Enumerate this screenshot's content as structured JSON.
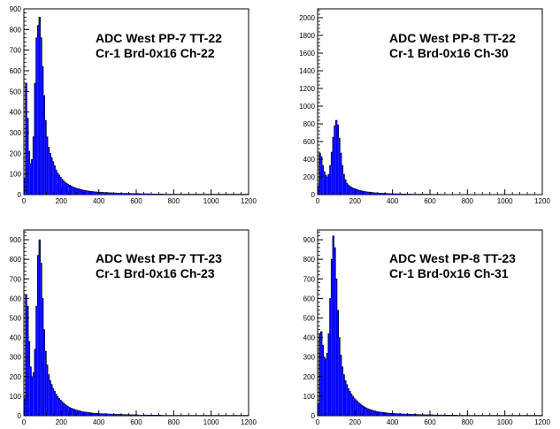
{
  "chart_data": [
    {
      "type": "bar",
      "title_lines": [
        "ADC West PP-7 TT-22",
        "Cr-1 Brd-0x16 Ch-22"
      ],
      "xlim": [
        0,
        1200
      ],
      "ylim": [
        0,
        900
      ],
      "x_ticks": [
        0,
        200,
        400,
        600,
        800,
        1000,
        1200
      ],
      "y_ticks": [
        0,
        100,
        200,
        300,
        400,
        500,
        600,
        700,
        800,
        900
      ],
      "bin_width": 8,
      "bar_color": "#0000ff",
      "outline_color": "#000000",
      "counts": [
        80,
        540,
        370,
        210,
        150,
        170,
        280,
        540,
        760,
        820,
        860,
        760,
        620,
        480,
        360,
        280,
        230,
        200,
        180,
        160,
        140,
        120,
        105,
        95,
        85,
        75,
        68,
        60,
        55,
        50,
        46,
        42,
        38,
        35,
        32,
        30,
        28,
        26,
        24,
        22,
        20,
        19,
        18,
        17,
        16,
        15,
        14,
        13,
        13,
        12,
        12,
        11,
        11,
        10,
        10,
        10,
        9,
        9,
        9,
        8,
        8,
        8,
        7,
        7,
        7,
        7,
        6,
        6,
        6,
        6,
        6,
        5,
        5,
        5,
        5,
        5,
        5,
        4,
        4,
        4,
        4,
        4,
        4,
        4,
        3,
        3,
        3,
        3,
        3,
        3,
        3,
        3,
        3,
        2,
        2,
        2,
        2,
        2,
        2,
        2,
        2,
        2,
        2,
        2,
        2,
        2,
        2,
        2,
        2,
        2,
        2,
        2,
        2,
        2,
        2,
        2,
        2,
        2,
        2,
        2,
        2,
        2,
        2,
        2,
        2,
        2,
        2,
        2,
        2,
        2,
        2,
        2,
        2,
        2,
        2,
        2,
        2,
        2,
        2,
        2,
        2,
        2,
        2,
        2,
        2,
        2,
        2,
        2,
        2,
        2
      ]
    },
    {
      "type": "bar",
      "title_lines": [
        "ADC West PP-8 TT-22",
        "Cr-1 Brd-0x16 Ch-30"
      ],
      "xlim": [
        0,
        1200
      ],
      "ylim": [
        0,
        2100
      ],
      "x_ticks": [
        0,
        200,
        400,
        600,
        800,
        1000,
        1200
      ],
      "y_ticks": [
        0,
        200,
        400,
        600,
        800,
        1000,
        1200,
        1400,
        1600,
        1800,
        2000
      ],
      "bin_width": 8,
      "bar_color": "#0000ff",
      "outline_color": "#000000",
      "counts": [
        100,
        470,
        430,
        330,
        260,
        220,
        200,
        230,
        330,
        480,
        650,
        780,
        840,
        790,
        640,
        470,
        330,
        230,
        170,
        130,
        110,
        95,
        85,
        75,
        68,
        62,
        56,
        50,
        46,
        42,
        38,
        35,
        32,
        30,
        28,
        26,
        24,
        22,
        20,
        19,
        18,
        17,
        16,
        15,
        14,
        13,
        12,
        12,
        11,
        10,
        10,
        9,
        9,
        8,
        8,
        8,
        7,
        7,
        7,
        6,
        6,
        6,
        6,
        5,
        5,
        5,
        5,
        5,
        4,
        4,
        4,
        4,
        4,
        4,
        3,
        3,
        3,
        3,
        3,
        3,
        3,
        3,
        3,
        2,
        2,
        2,
        2,
        2,
        2,
        2,
        2,
        2,
        2,
        2,
        2,
        2,
        2,
        2,
        2,
        2,
        2,
        2,
        2,
        2,
        2,
        2,
        2,
        2,
        2,
        2,
        2,
        2,
        2,
        2,
        2,
        2,
        2,
        2,
        2,
        2,
        2,
        2,
        2,
        2,
        2,
        2,
        2,
        2,
        2,
        2,
        2,
        2,
        2,
        2,
        2,
        2,
        2,
        2,
        2,
        2,
        2,
        2,
        2,
        2,
        2,
        2,
        2,
        2,
        2,
        2
      ]
    },
    {
      "type": "bar",
      "title_lines": [
        "ADC West PP-7 TT-23",
        "Cr-1 Brd-0x16 Ch-23"
      ],
      "xlim": [
        0,
        1200
      ],
      "ylim": [
        0,
        950
      ],
      "x_ticks": [
        0,
        200,
        400,
        600,
        800,
        1000,
        1200
      ],
      "y_ticks": [
        0,
        100,
        200,
        300,
        400,
        500,
        600,
        700,
        800,
        900
      ],
      "bin_width": 8,
      "bar_color": "#0000ff",
      "outline_color": "#000000",
      "counts": [
        90,
        620,
        560,
        380,
        250,
        200,
        220,
        340,
        560,
        820,
        900,
        780,
        600,
        440,
        330,
        260,
        210,
        180,
        160,
        140,
        125,
        110,
        98,
        88,
        80,
        72,
        65,
        58,
        52,
        47,
        43,
        39,
        36,
        33,
        30,
        28,
        26,
        24,
        22,
        20,
        19,
        18,
        17,
        16,
        15,
        14,
        13,
        13,
        12,
        12,
        11,
        11,
        10,
        10,
        10,
        9,
        9,
        9,
        8,
        8,
        8,
        7,
        7,
        7,
        7,
        6,
        6,
        6,
        6,
        6,
        5,
        5,
        5,
        5,
        5,
        5,
        4,
        4,
        4,
        4,
        4,
        4,
        4,
        3,
        3,
        3,
        3,
        3,
        3,
        3,
        3,
        3,
        2,
        2,
        2,
        2,
        2,
        2,
        2,
        2,
        2,
        2,
        2,
        2,
        2,
        2,
        2,
        2,
        2,
        2,
        2,
        2,
        2,
        2,
        2,
        2,
        2,
        2,
        2,
        2,
        2,
        2,
        2,
        2,
        2,
        2,
        2,
        2,
        2,
        2,
        2,
        2,
        2,
        2,
        2,
        2,
        2,
        2,
        2,
        2,
        2,
        2,
        2,
        2,
        2,
        2,
        2,
        2,
        2,
        2
      ]
    },
    {
      "type": "bar",
      "title_lines": [
        "ADC West PP-8 TT-23",
        "Cr-1 Brd-0x16 Ch-31"
      ],
      "xlim": [
        0,
        1200
      ],
      "ylim": [
        0,
        950
      ],
      "x_ticks": [
        0,
        200,
        400,
        600,
        800,
        1000,
        1200
      ],
      "y_ticks": [
        0,
        100,
        200,
        300,
        400,
        500,
        600,
        700,
        800,
        900
      ],
      "bin_width": 8,
      "bar_color": "#0000ff",
      "outline_color": "#000000",
      "counts": [
        60,
        420,
        430,
        360,
        300,
        290,
        320,
        420,
        600,
        800,
        920,
        860,
        700,
        540,
        400,
        310,
        250,
        210,
        180,
        160,
        140,
        125,
        112,
        100,
        90,
        82,
        74,
        66,
        60,
        54,
        49,
        44,
        40,
        36,
        33,
        30,
        28,
        26,
        24,
        22,
        20,
        19,
        18,
        17,
        16,
        15,
        14,
        13,
        13,
        12,
        12,
        11,
        11,
        10,
        10,
        10,
        9,
        9,
        9,
        8,
        8,
        8,
        7,
        7,
        7,
        7,
        6,
        6,
        6,
        6,
        6,
        5,
        5,
        5,
        5,
        5,
        5,
        4,
        4,
        4,
        4,
        4,
        4,
        4,
        3,
        3,
        3,
        3,
        3,
        3,
        3,
        3,
        3,
        2,
        2,
        2,
        2,
        2,
        2,
        2,
        2,
        2,
        2,
        2,
        2,
        2,
        2,
        2,
        2,
        2,
        2,
        2,
        2,
        2,
        2,
        2,
        2,
        2,
        2,
        2,
        2,
        2,
        2,
        2,
        2,
        2,
        2,
        2,
        2,
        2,
        2,
        2,
        2,
        2,
        2,
        2,
        2,
        2,
        2,
        2,
        2,
        2,
        2,
        2,
        2,
        2,
        2,
        2,
        2,
        2
      ]
    }
  ]
}
